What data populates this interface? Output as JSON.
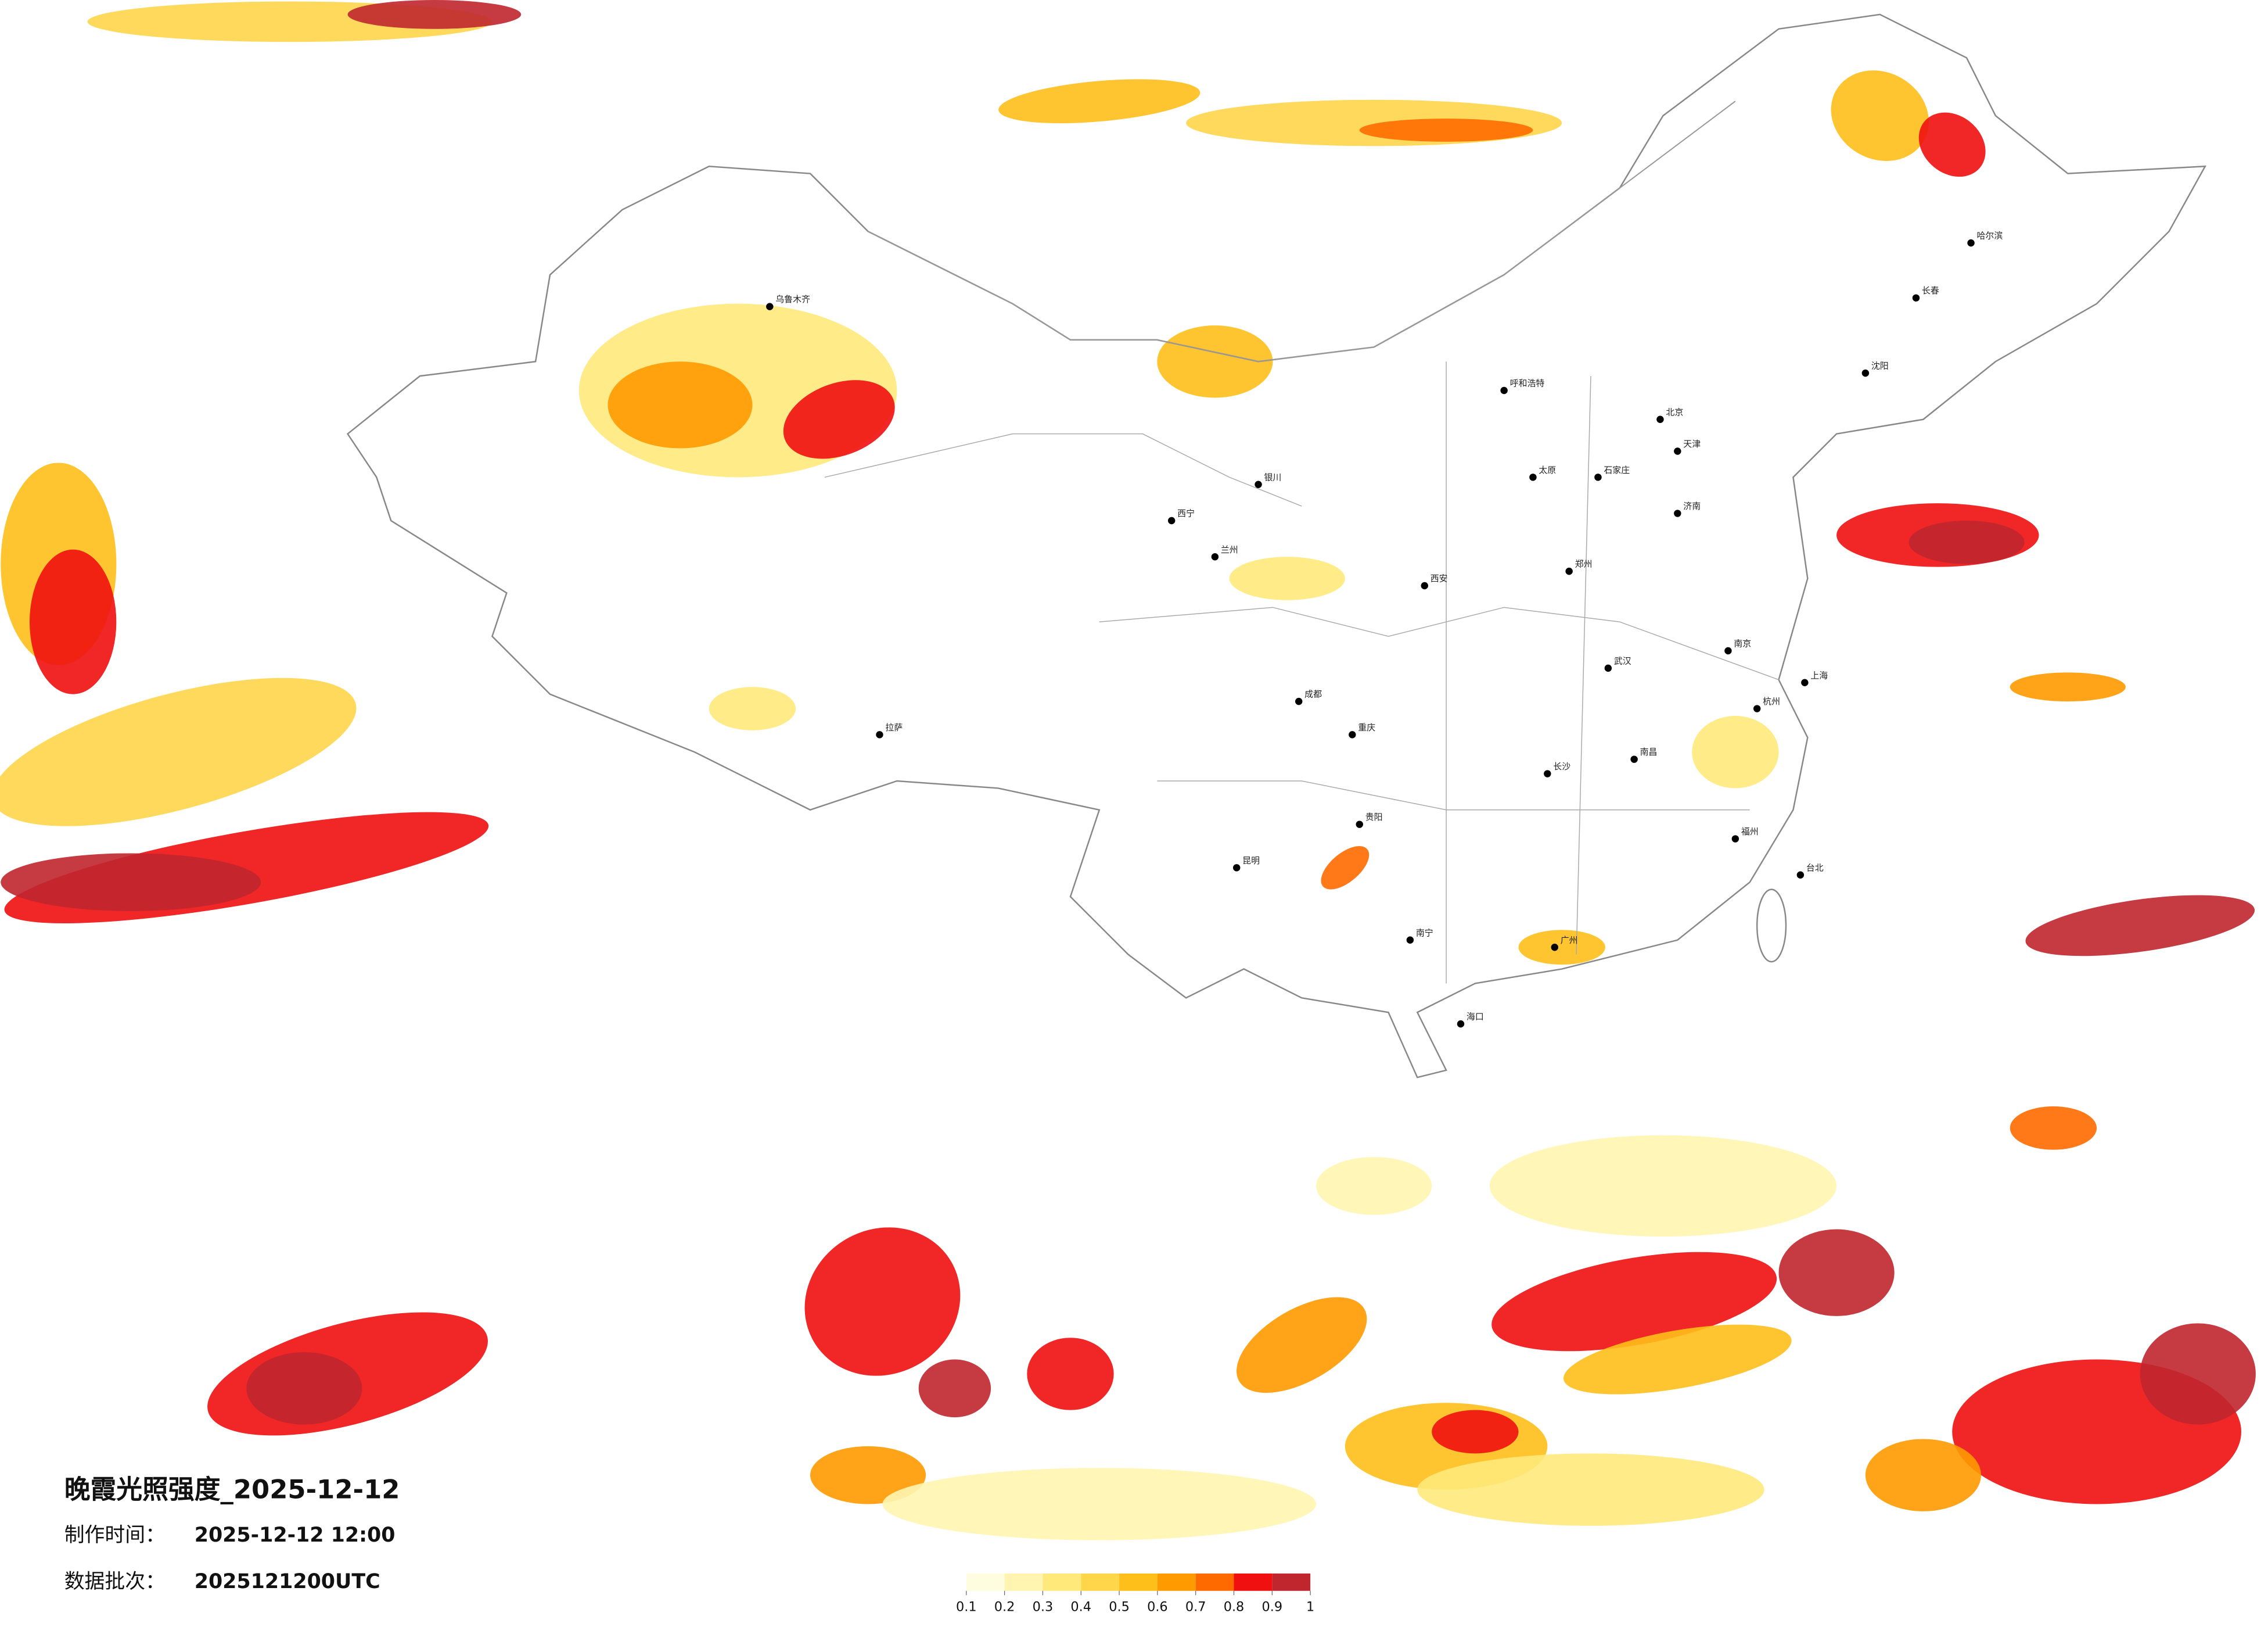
{
  "header": {
    "title": "晚霞光照强度_2025-12-12",
    "made_label": "制作时间：",
    "made_value": "2025-12-12 12:00",
    "batch_label": "数据批次：",
    "batch_value": "2025121200UTC"
  },
  "colorbar": {
    "ticks": [
      0.1,
      0.2,
      0.3,
      0.4,
      0.5,
      0.6,
      0.7,
      0.8,
      0.9,
      1
    ],
    "colors": [
      "#fffde0",
      "#fff5b0",
      "#ffe97a",
      "#ffd54a",
      "#ffbf1a",
      "#ff9a00",
      "#ff6a00",
      "#f01010",
      "#c0262e"
    ]
  },
  "cities": [
    "北京",
    "天津",
    "上海",
    "广州",
    "武汉",
    "乌鲁木齐",
    "拉萨",
    "哈尔滨",
    "长春",
    "沈阳",
    "西安",
    "成都",
    "重庆",
    "昆明",
    "南宁",
    "海口",
    "郑州",
    "长沙",
    "南昌",
    "杭州",
    "南京",
    "福州",
    "兰州",
    "西宁",
    "呼和浩特",
    "银川",
    "济南",
    "太原",
    "贵阳",
    "石家庄",
    "台北"
  ]
}
